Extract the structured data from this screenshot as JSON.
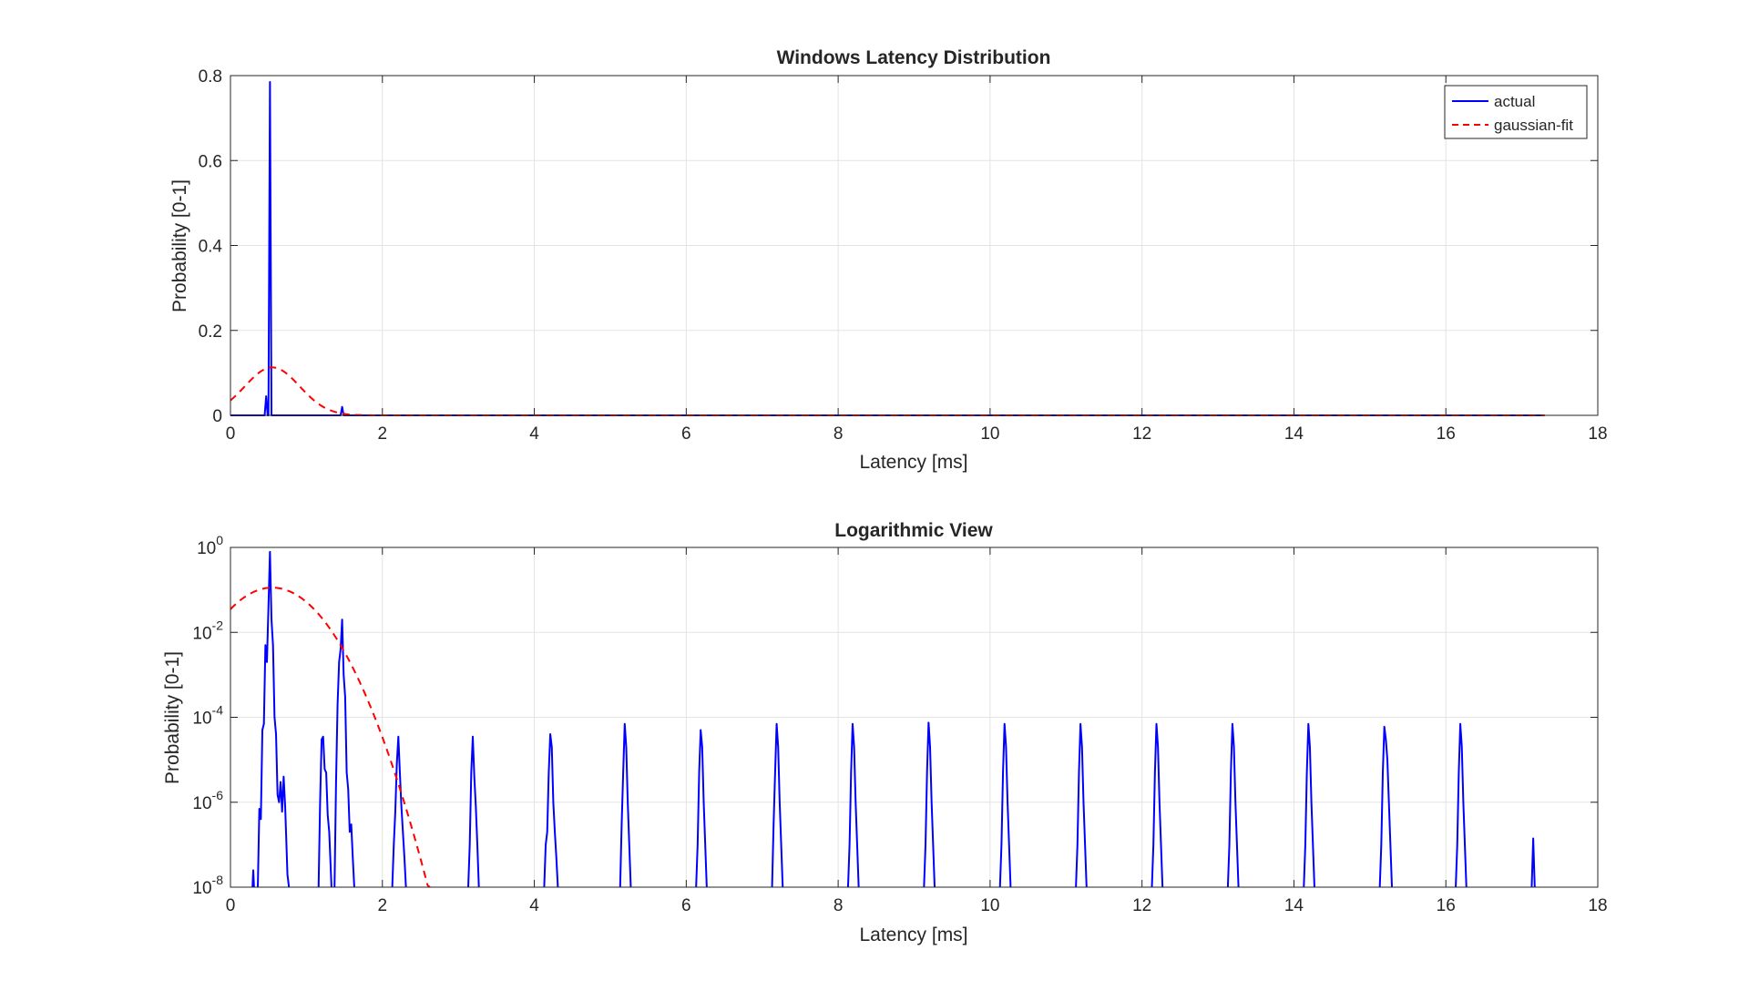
{
  "chart_data": [
    {
      "type": "line",
      "title": "Windows Latency Distribution",
      "xlabel": "Latency [ms]",
      "ylabel": "Probability [0-1]",
      "xlim": [
        0,
        18
      ],
      "ylim": [
        0,
        0.8
      ],
      "yscale": "linear",
      "xticks": [
        "0",
        "2",
        "4",
        "6",
        "8",
        "10",
        "12",
        "14",
        "16",
        "18"
      ],
      "yticks": [
        "0",
        "0.2",
        "0.4",
        "0.6",
        "0.8"
      ],
      "grid": true,
      "legend": {
        "position": "top-right",
        "entries": [
          "actual",
          "gaussian-fit"
        ]
      },
      "series": [
        {
          "name": "actual",
          "color": "#0000ff",
          "style": "solid",
          "points": [
            [
              0,
              0
            ],
            [
              0.45,
              0
            ],
            [
              0.47,
              0.045
            ],
            [
              0.49,
              0
            ],
            [
              0.5,
              0
            ],
            [
              0.52,
              0.785
            ],
            [
              0.54,
              0
            ],
            [
              1.45,
              0
            ],
            [
              1.47,
              0.02
            ],
            [
              1.49,
              0
            ],
            [
              17.3,
              0
            ]
          ]
        },
        {
          "name": "gaussian-fit",
          "color": "#ff0000",
          "style": "dashed",
          "gaussian": {
            "mu": 0.55,
            "sigma": 0.36,
            "peak": 0.113,
            "x_start": 0,
            "x_end": 17.3
          }
        }
      ]
    },
    {
      "type": "line",
      "title": "Logarithmic View",
      "xlabel": "Latency [ms]",
      "ylabel": "Probability [0-1]",
      "xlim": [
        0,
        18
      ],
      "ylim": [
        1e-08,
        1
      ],
      "yscale": "log",
      "xticks": [
        "0",
        "2",
        "4",
        "6",
        "8",
        "10",
        "12",
        "14",
        "16",
        "18"
      ],
      "yticks": [
        {
          "base": "10",
          "exp": "-8"
        },
        {
          "base": "10",
          "exp": "-6"
        },
        {
          "base": "10",
          "exp": "-4"
        },
        {
          "base": "10",
          "exp": "-2"
        },
        {
          "base": "10",
          "exp": "0"
        }
      ],
      "grid": true,
      "series": [
        {
          "name": "actual",
          "color": "#0000ff",
          "style": "solid",
          "segments": [
            [
              [
                0.29,
                1e-08
              ],
              [
                0.3,
                2.5e-08
              ],
              [
                0.31,
                1e-08
              ]
            ],
            [
              [
                0.36,
                1e-08
              ],
              [
                0.38,
                7e-07
              ],
              [
                0.4,
                4e-07
              ],
              [
                0.42,
                5e-05
              ],
              [
                0.44,
                7e-05
              ],
              [
                0.46,
                0.005
              ],
              [
                0.48,
                0.002
              ],
              [
                0.5,
                0.04
              ],
              [
                0.52,
                0.785
              ],
              [
                0.54,
                0.02
              ],
              [
                0.56,
                0.005
              ],
              [
                0.58,
                0.0001
              ],
              [
                0.6,
                4e-05
              ],
              [
                0.62,
                1.5e-06
              ],
              [
                0.64,
                1e-06
              ],
              [
                0.66,
                3e-06
              ],
              [
                0.68,
                6e-07
              ],
              [
                0.7,
                4e-06
              ],
              [
                0.72,
                8e-07
              ],
              [
                0.75,
                2e-08
              ],
              [
                0.77,
                1e-08
              ]
            ],
            [
              [
                1.16,
                1e-08
              ],
              [
                1.18,
                1e-06
              ],
              [
                1.2,
                3e-05
              ],
              [
                1.22,
                3.5e-05
              ],
              [
                1.24,
                6e-06
              ],
              [
                1.26,
                5e-06
              ],
              [
                1.28,
                5e-07
              ],
              [
                1.3,
                2e-07
              ],
              [
                1.33,
                1e-08
              ]
            ],
            [
              [
                1.37,
                1e-08
              ],
              [
                1.39,
                3e-06
              ],
              [
                1.41,
                0.0002
              ],
              [
                1.43,
                0.002
              ],
              [
                1.45,
                0.004
              ],
              [
                1.47,
                0.02
              ],
              [
                1.49,
                0.001
              ],
              [
                1.51,
                0.0003
              ],
              [
                1.53,
                5e-06
              ],
              [
                1.55,
                2e-06
              ],
              [
                1.57,
                2e-07
              ],
              [
                1.59,
                3e-07
              ],
              [
                1.61,
                5e-08
              ],
              [
                1.63,
                1e-08
              ]
            ],
            [
              [
                2.13,
                1e-08
              ],
              [
                2.15,
                1e-07
              ],
              [
                2.17,
                6e-07
              ],
              [
                2.19,
                8e-06
              ],
              [
                2.21,
                3.5e-05
              ],
              [
                2.23,
                5e-06
              ],
              [
                2.25,
                8e-07
              ],
              [
                2.27,
                2e-07
              ],
              [
                2.29,
                5e-08
              ],
              [
                2.31,
                1e-08
              ]
            ],
            [
              [
                3.13,
                1e-08
              ],
              [
                3.15,
                1e-07
              ],
              [
                3.17,
                5e-06
              ],
              [
                3.19,
                3.5e-05
              ],
              [
                3.21,
                4e-06
              ],
              [
                3.23,
                8e-07
              ],
              [
                3.25,
                1e-07
              ],
              [
                3.27,
                1e-08
              ]
            ],
            [
              [
                4.13,
                1e-08
              ],
              [
                4.15,
                1e-07
              ],
              [
                4.17,
                2e-07
              ],
              [
                4.19,
                5e-06
              ],
              [
                4.21,
                4e-05
              ],
              [
                4.23,
                2e-05
              ],
              [
                4.25,
                1e-06
              ],
              [
                4.27,
                2e-07
              ],
              [
                4.29,
                5e-08
              ],
              [
                4.31,
                1e-08
              ]
            ],
            [
              [
                5.13,
                1e-08
              ],
              [
                5.15,
                3e-07
              ],
              [
                5.17,
                5e-06
              ],
              [
                5.19,
                7e-05
              ],
              [
                5.21,
                2e-05
              ],
              [
                5.23,
                1e-06
              ],
              [
                5.25,
                1e-07
              ],
              [
                5.27,
                1e-08
              ]
            ],
            [
              [
                6.13,
                1e-08
              ],
              [
                6.15,
                1e-07
              ],
              [
                6.17,
                5e-06
              ],
              [
                6.19,
                5e-05
              ],
              [
                6.21,
                2e-05
              ],
              [
                6.23,
                1e-06
              ],
              [
                6.25,
                1e-07
              ],
              [
                6.27,
                1e-08
              ]
            ],
            [
              [
                7.13,
                1e-08
              ],
              [
                7.15,
                3e-07
              ],
              [
                7.17,
                5e-06
              ],
              [
                7.19,
                7e-05
              ],
              [
                7.21,
                2e-05
              ],
              [
                7.23,
                1e-06
              ],
              [
                7.25,
                1e-07
              ],
              [
                7.27,
                1e-08
              ]
            ],
            [
              [
                8.13,
                1e-08
              ],
              [
                8.15,
                1e-07
              ],
              [
                8.17,
                5e-06
              ],
              [
                8.19,
                7e-05
              ],
              [
                8.21,
                2e-05
              ],
              [
                8.23,
                1e-06
              ],
              [
                8.25,
                1e-07
              ],
              [
                8.27,
                1e-08
              ]
            ],
            [
              [
                9.13,
                1e-08
              ],
              [
                9.15,
                1e-07
              ],
              [
                9.17,
                5e-06
              ],
              [
                9.19,
                7.5e-05
              ],
              [
                9.21,
                2e-05
              ],
              [
                9.23,
                1e-06
              ],
              [
                9.25,
                1e-07
              ],
              [
                9.27,
                1e-08
              ]
            ],
            [
              [
                10.13,
                1e-08
              ],
              [
                10.15,
                1e-07
              ],
              [
                10.17,
                5e-06
              ],
              [
                10.19,
                7e-05
              ],
              [
                10.21,
                2e-05
              ],
              [
                10.23,
                1e-06
              ],
              [
                10.25,
                1e-07
              ],
              [
                10.27,
                1e-08
              ]
            ],
            [
              [
                11.13,
                1e-08
              ],
              [
                11.15,
                1e-07
              ],
              [
                11.17,
                5e-06
              ],
              [
                11.19,
                7e-05
              ],
              [
                11.21,
                2e-05
              ],
              [
                11.23,
                1e-06
              ],
              [
                11.25,
                1e-07
              ],
              [
                11.27,
                1e-08
              ]
            ],
            [
              [
                12.13,
                1e-08
              ],
              [
                12.15,
                1e-07
              ],
              [
                12.17,
                5e-06
              ],
              [
                12.19,
                7e-05
              ],
              [
                12.21,
                2e-05
              ],
              [
                12.23,
                1e-06
              ],
              [
                12.25,
                1e-07
              ],
              [
                12.27,
                1e-08
              ]
            ],
            [
              [
                13.13,
                1e-08
              ],
              [
                13.15,
                1e-07
              ],
              [
                13.17,
                5e-06
              ],
              [
                13.19,
                7e-05
              ],
              [
                13.21,
                2e-05
              ],
              [
                13.23,
                1e-06
              ],
              [
                13.25,
                1e-07
              ],
              [
                13.27,
                1e-08
              ]
            ],
            [
              [
                14.13,
                1e-08
              ],
              [
                14.15,
                1e-07
              ],
              [
                14.17,
                5e-06
              ],
              [
                14.19,
                7e-05
              ],
              [
                14.21,
                2e-05
              ],
              [
                14.23,
                1e-06
              ],
              [
                14.25,
                1e-07
              ],
              [
                14.27,
                1e-08
              ]
            ],
            [
              [
                15.13,
                1e-08
              ],
              [
                15.15,
                1e-07
              ],
              [
                15.17,
                5e-06
              ],
              [
                15.19,
                6e-05
              ],
              [
                15.21,
                3e-05
              ],
              [
                15.23,
                1e-05
              ],
              [
                15.25,
                1e-06
              ],
              [
                15.27,
                1e-07
              ],
              [
                15.29,
                1e-08
              ]
            ],
            [
              [
                16.13,
                1e-08
              ],
              [
                16.15,
                1e-07
              ],
              [
                16.17,
                5e-06
              ],
              [
                16.19,
                7e-05
              ],
              [
                16.21,
                2e-05
              ],
              [
                16.23,
                1e-06
              ],
              [
                16.25,
                1e-07
              ],
              [
                16.27,
                1e-08
              ]
            ],
            [
              [
                17.13,
                1e-08
              ],
              [
                17.15,
                1.4e-07
              ],
              [
                17.17,
                1e-08
              ]
            ]
          ]
        },
        {
          "name": "gaussian-fit",
          "color": "#ff0000",
          "style": "dashed",
          "gaussian": {
            "mu": 0.55,
            "sigma": 0.36,
            "peak": 0.113,
            "x_start": 0,
            "x_end": 17.3
          }
        }
      ]
    }
  ]
}
